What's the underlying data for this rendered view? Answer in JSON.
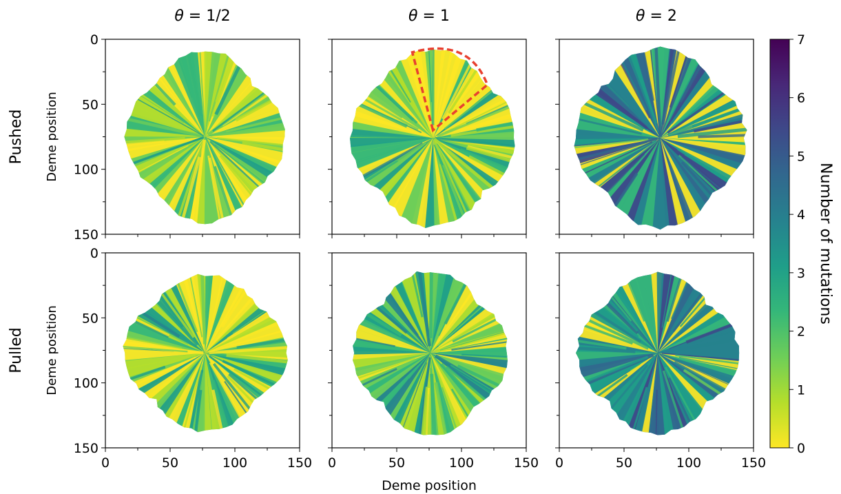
{
  "chart_data": {
    "type": "heatmap",
    "columns": [
      {
        "label": "θ = 1/2",
        "theta": "1/2"
      },
      {
        "label": "θ = 1",
        "theta": "1"
      },
      {
        "label": "θ = 2",
        "theta": "2"
      }
    ],
    "rows": [
      {
        "label": "Pushed"
      },
      {
        "label": "Pulled"
      }
    ],
    "xlabel": "Deme position",
    "ylabel": "Deme position",
    "xlim": [
      0,
      150
    ],
    "ylim": [
      150,
      0
    ],
    "x_ticks": [
      0,
      50,
      100,
      150
    ],
    "y_ticks": [
      0,
      50,
      100,
      150
    ],
    "colorbar": {
      "label": "Number of mutations",
      "range": [
        0,
        7
      ],
      "ticks": [
        0,
        1,
        2,
        3,
        4,
        5,
        6,
        7
      ],
      "colormap": "viridis_r",
      "colors": [
        "#fde725",
        "#b5de2b",
        "#6ece58",
        "#35b779",
        "#1f9e89",
        "#26828e",
        "#31688e",
        "#3e4989",
        "#482878",
        "#440154"
      ]
    },
    "panels": [
      {
        "row": "Pushed",
        "column": "θ = 1/2",
        "mean_mutations": 1.2,
        "radius_x": 61,
        "radius_y": 66,
        "center": [
          77,
          75
        ],
        "highlight": false
      },
      {
        "row": "Pushed",
        "column": "θ = 1",
        "mean_mutations": 1.6,
        "radius_x": 64,
        "radius_y": 68,
        "center": [
          78,
          76
        ],
        "highlight": true
      },
      {
        "row": "Pushed",
        "column": "θ = 2",
        "mean_mutations": 3.8,
        "radius_x": 66,
        "radius_y": 69,
        "center": [
          78,
          76
        ],
        "highlight": false
      },
      {
        "row": "Pulled",
        "column": "θ = 1/2",
        "mean_mutations": 1.8,
        "radius_x": 63,
        "radius_y": 60,
        "center": [
          77,
          77
        ],
        "highlight": false
      },
      {
        "row": "Pulled",
        "column": "θ = 1",
        "mean_mutations": 2.1,
        "radius_x": 60,
        "radius_y": 63,
        "center": [
          76,
          77
        ],
        "highlight": false
      },
      {
        "row": "Pulled",
        "column": "θ = 2",
        "mean_mutations": 3.6,
        "radius_x": 62,
        "radius_y": 62,
        "center": [
          76,
          77
        ],
        "highlight": false
      }
    ],
    "annotation": {
      "panel": "Pushed, θ = 1",
      "shape": "sector",
      "style": "red dashed outline",
      "color": "#e8402f",
      "apex": [
        78,
        70
      ],
      "arc_from": [
        62,
        10
      ],
      "arc_to": [
        120,
        35
      ]
    },
    "grid": false,
    "legend": "colorbar-right"
  }
}
